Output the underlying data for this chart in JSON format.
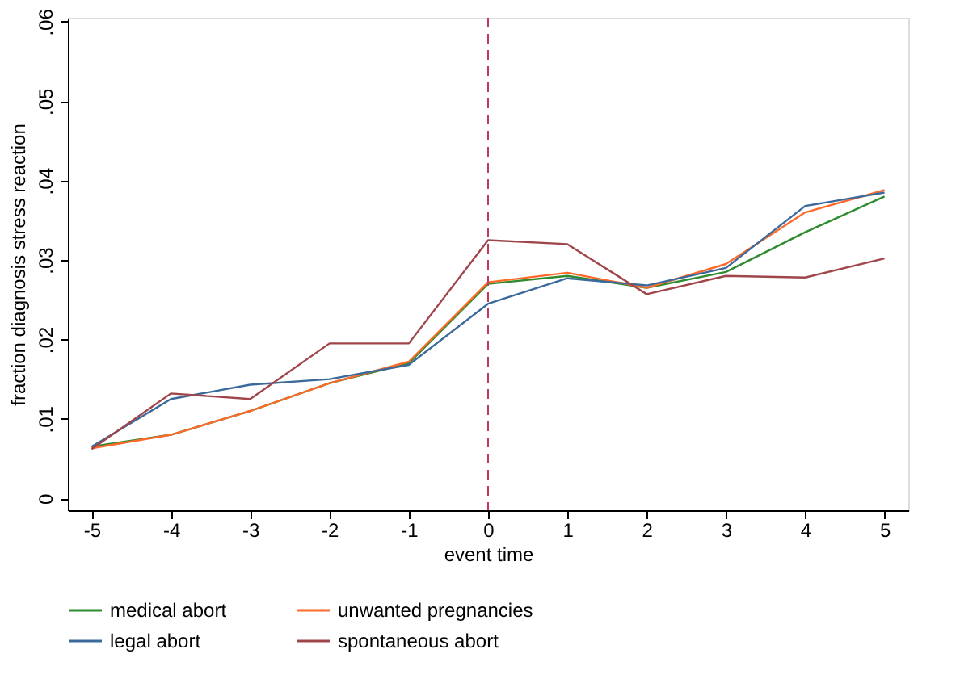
{
  "chart_data": {
    "type": "line",
    "xlabel": "event time",
    "ylabel": "fraction diagnosis stress reaction",
    "x": [
      -5,
      -4,
      -3,
      -2,
      -1,
      0,
      1,
      2,
      3,
      4,
      5
    ],
    "series": [
      {
        "name": "medical abort",
        "color": "#2e8b2e",
        "values": [
          0.0065,
          0.008,
          0.011,
          0.0145,
          0.017,
          0.027,
          0.028,
          0.0265,
          0.0285,
          0.0335,
          0.038
        ]
      },
      {
        "name": "unwanted pregnancies",
        "color": "#ff6a2a",
        "values": [
          0.0063,
          0.008,
          0.011,
          0.0145,
          0.0172,
          0.0272,
          0.0284,
          0.0265,
          0.0295,
          0.036,
          0.0388
        ]
      },
      {
        "name": "legal abort",
        "color": "#3b6a9a",
        "values": [
          0.0065,
          0.0125,
          0.0143,
          0.015,
          0.0168,
          0.0245,
          0.0277,
          0.0268,
          0.029,
          0.0368,
          0.0385
        ]
      },
      {
        "name": "spontaneous abort",
        "color": "#a0464b",
        "values": [
          0.0062,
          0.0132,
          0.0125,
          0.0195,
          0.0195,
          0.0325,
          0.032,
          0.0257,
          0.028,
          0.0278,
          0.0302
        ]
      }
    ],
    "xlim": [
      -5.3,
      5.3
    ],
    "xticks": [
      -5,
      -4,
      -3,
      -2,
      -1,
      0,
      1,
      2,
      3,
      4,
      5
    ],
    "ylim": [
      -0.0015,
      0.0605
    ],
    "yticks": [
      {
        "value": 0,
        "label": "0"
      },
      {
        "value": 0.01,
        "label": ".01"
      },
      {
        "value": 0.02,
        "label": ".02"
      },
      {
        "value": 0.03,
        "label": ".03"
      },
      {
        "value": 0.04,
        "label": ".04"
      },
      {
        "value": 0.05,
        "label": ".05"
      },
      {
        "value": 0.06,
        "label": ".06"
      }
    ],
    "ref_lines": [
      {
        "axis": "x",
        "value": 0,
        "color": "#c0395a",
        "line_style": "dashed"
      }
    ],
    "grid": false,
    "legend": "bottom",
    "marker": "none",
    "line_style": "solid"
  }
}
